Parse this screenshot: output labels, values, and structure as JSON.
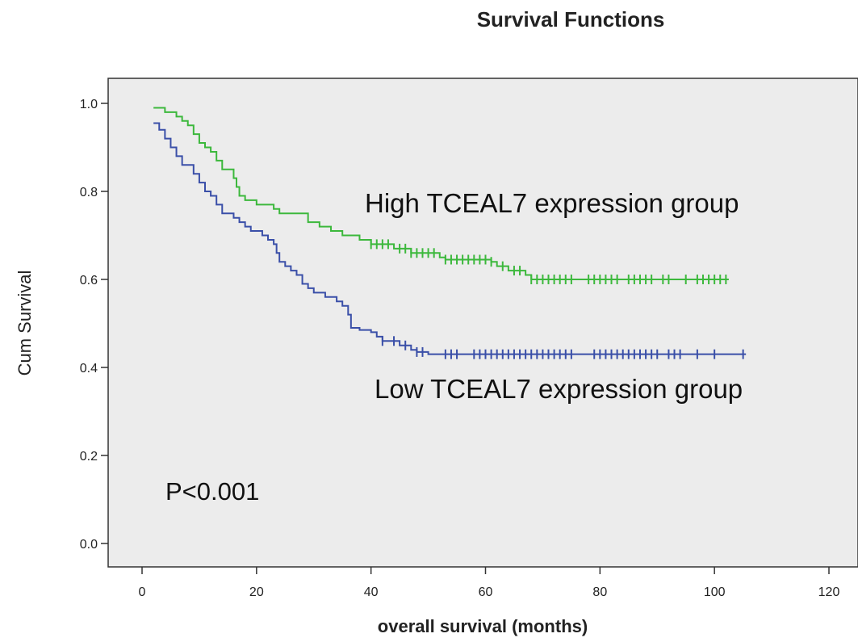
{
  "chart_data": {
    "type": "line",
    "title": "Survival Functions",
    "xlabel": "overall survival (months)",
    "ylabel": "Cum Survival",
    "xlim": [
      0,
      120
    ],
    "ylim": [
      0,
      1
    ],
    "x_ticks": [
      "0",
      "20",
      "40",
      "60",
      "80",
      "100",
      "120"
    ],
    "y_ticks": [
      "0.0",
      "0.2",
      "0.4",
      "0.6",
      "0.8",
      "1.0"
    ],
    "grid": false,
    "background_color": "#ececec",
    "annotations": {
      "high": "High TCEAL7 expression group",
      "low": "Low TCEAL7 expression group",
      "pvalue": "P<0.001"
    },
    "series": [
      {
        "color": "#3cb83c",
        "steps": [
          [
            2,
            0.99
          ],
          [
            4,
            0.98
          ],
          [
            6,
            0.97
          ],
          [
            7,
            0.96
          ],
          [
            8,
            0.95
          ],
          [
            9,
            0.93
          ],
          [
            10,
            0.91
          ],
          [
            11,
            0.9
          ],
          [
            12,
            0.89
          ],
          [
            13,
            0.87
          ],
          [
            14,
            0.85
          ],
          [
            16,
            0.83
          ],
          [
            16.5,
            0.81
          ],
          [
            17,
            0.79
          ],
          [
            18,
            0.78
          ],
          [
            20,
            0.77
          ],
          [
            23,
            0.76
          ],
          [
            24,
            0.75
          ],
          [
            29,
            0.73
          ],
          [
            31,
            0.72
          ],
          [
            33,
            0.71
          ],
          [
            35,
            0.7
          ],
          [
            38,
            0.69
          ],
          [
            40,
            0.68
          ],
          [
            44,
            0.67
          ],
          [
            47,
            0.66
          ],
          [
            52,
            0.65
          ],
          [
            53,
            0.645
          ],
          [
            61,
            0.64
          ],
          [
            62,
            0.63
          ],
          [
            64,
            0.62
          ],
          [
            67,
            0.61
          ],
          [
            68,
            0.6
          ],
          [
            102.5,
            0.6
          ]
        ],
        "censored_x": [
          40,
          41,
          42,
          43,
          45,
          46,
          47,
          48,
          49,
          50,
          51,
          53,
          54,
          55,
          56,
          57,
          58,
          59,
          60,
          61,
          63,
          65,
          66,
          68,
          69,
          70,
          71,
          72,
          73,
          74,
          75,
          78,
          79,
          80,
          81,
          82,
          83,
          85,
          86,
          87,
          88,
          89,
          91,
          92,
          95,
          97,
          98,
          99,
          100,
          101,
          102
        ]
      },
      {
        "color": "#3a4fa8",
        "steps": [
          [
            2,
            0.955
          ],
          [
            3,
            0.94
          ],
          [
            4,
            0.92
          ],
          [
            5,
            0.9
          ],
          [
            6,
            0.88
          ],
          [
            7,
            0.86
          ],
          [
            9,
            0.84
          ],
          [
            10,
            0.82
          ],
          [
            11,
            0.8
          ],
          [
            12,
            0.79
          ],
          [
            13,
            0.77
          ],
          [
            14,
            0.75
          ],
          [
            16,
            0.74
          ],
          [
            17,
            0.73
          ],
          [
            18,
            0.72
          ],
          [
            19,
            0.71
          ],
          [
            21,
            0.7
          ],
          [
            22,
            0.69
          ],
          [
            23,
            0.68
          ],
          [
            23.5,
            0.66
          ],
          [
            24,
            0.64
          ],
          [
            25,
            0.63
          ],
          [
            26,
            0.62
          ],
          [
            27,
            0.61
          ],
          [
            28,
            0.59
          ],
          [
            29,
            0.58
          ],
          [
            30,
            0.57
          ],
          [
            32,
            0.56
          ],
          [
            34,
            0.55
          ],
          [
            35,
            0.54
          ],
          [
            36,
            0.52
          ],
          [
            36.5,
            0.49
          ],
          [
            38,
            0.485
          ],
          [
            40,
            0.48
          ],
          [
            41,
            0.47
          ],
          [
            42,
            0.46
          ],
          [
            45,
            0.45
          ],
          [
            47,
            0.44
          ],
          [
            48,
            0.435
          ],
          [
            50,
            0.43
          ],
          [
            105.5,
            0.43
          ]
        ],
        "censored_x": [
          42,
          44,
          46,
          48,
          49,
          53,
          54,
          55,
          58,
          59,
          60,
          61,
          62,
          63,
          64,
          65,
          66,
          67,
          68,
          69,
          70,
          71,
          72,
          73,
          74,
          75,
          79,
          80,
          81,
          82,
          83,
          84,
          85,
          86,
          87,
          88,
          89,
          90,
          92,
          93,
          94,
          97,
          100,
          105
        ]
      }
    ]
  }
}
